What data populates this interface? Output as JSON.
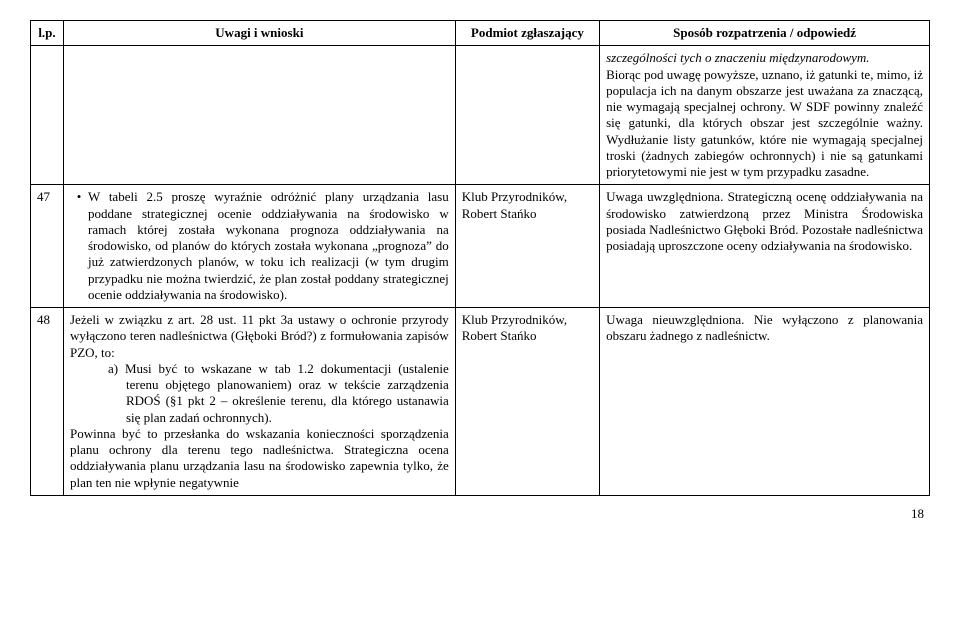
{
  "header": {
    "lp": "l.p.",
    "uwagi": "Uwagi i wnioski",
    "podmiot": "Podmiot zgłaszający",
    "sposob": "Sposób rozpatrzenia / odpowiedź"
  },
  "row_top": {
    "sposob_italic": "szczególności tych o znaczeniu międzynarodowym.",
    "sposob_rest": "Biorąc pod uwagę powyższe, uznano, iż gatunki te, mimo, iż populacja ich na danym obszarze jest uważana za znaczącą, nie wymagają specjalnej ochrony. W SDF powinny znaleźć się gatunki, dla których obszar jest szczególnie ważny. Wydłużanie listy gatunków, które nie wymagają specjalnej troski (żadnych zabiegów ochronnych) i nie są gatunkami priorytetowymi nie jest w tym przypadku zasadne."
  },
  "row47": {
    "num": "47",
    "uwagi_bullet": "W tabeli 2.5 proszę wyraźnie odróżnić plany urządzania lasu poddane strategicznej ocenie oddziaływania na środowisko w ramach której została wykonana prognoza oddziaływania na środowisko, od planów do których została wykonana „prognoza” do już zatwierdzonych planów, w toku ich realizacji (w tym drugim przypadku nie można twierdzić, że plan został poddany strategicznej ocenie oddziaływania na środowisko).",
    "podmiot_l1": "Klub Przyrodników,",
    "podmiot_l2": "Robert Stańko",
    "sposob": "Uwaga uwzględniona. Strategiczną ocenę oddziaływania na środowisko zatwierdzoną przez Ministra Środowiska posiada Nadleśnictwo Głęboki Bród. Pozostałe nadleśnictwa posiadają uproszczone oceny odziaływania na środowisko."
  },
  "row48": {
    "num": "48",
    "uwagi_p1": "Jeżeli w związku z art. 28 ust. 11 pkt 3a ustawy o ochronie przyrody wyłączono teren nadleśnictwa (Głęboki Bród?) z formułowania zapisów PZO, to:",
    "uwagi_a": "a) Musi być to wskazane w tab 1.2 dokumentacji (ustalenie terenu objętego planowaniem) oraz w tekście zarządzenia RDOŚ (§1 pkt 2 – określenie terenu, dla którego  ustanawia się plan zadań ochronnych).",
    "uwagi_p2": "Powinna być to przesłanka do wskazania konieczności sporządzenia planu ochrony dla terenu tego nadleśnictwa. Strategiczna ocena oddziaływania planu urządzania lasu na środowisko zapewnia tylko, że plan ten nie wpłynie negatywnie",
    "podmiot_l1": "Klub Przyrodników,",
    "podmiot_l2": "Robert Stańko",
    "sposob": "Uwaga nieuwzględniona. Nie wyłączono z planowania obszaru żadnego z nadleśnictw."
  },
  "page_number": "18"
}
